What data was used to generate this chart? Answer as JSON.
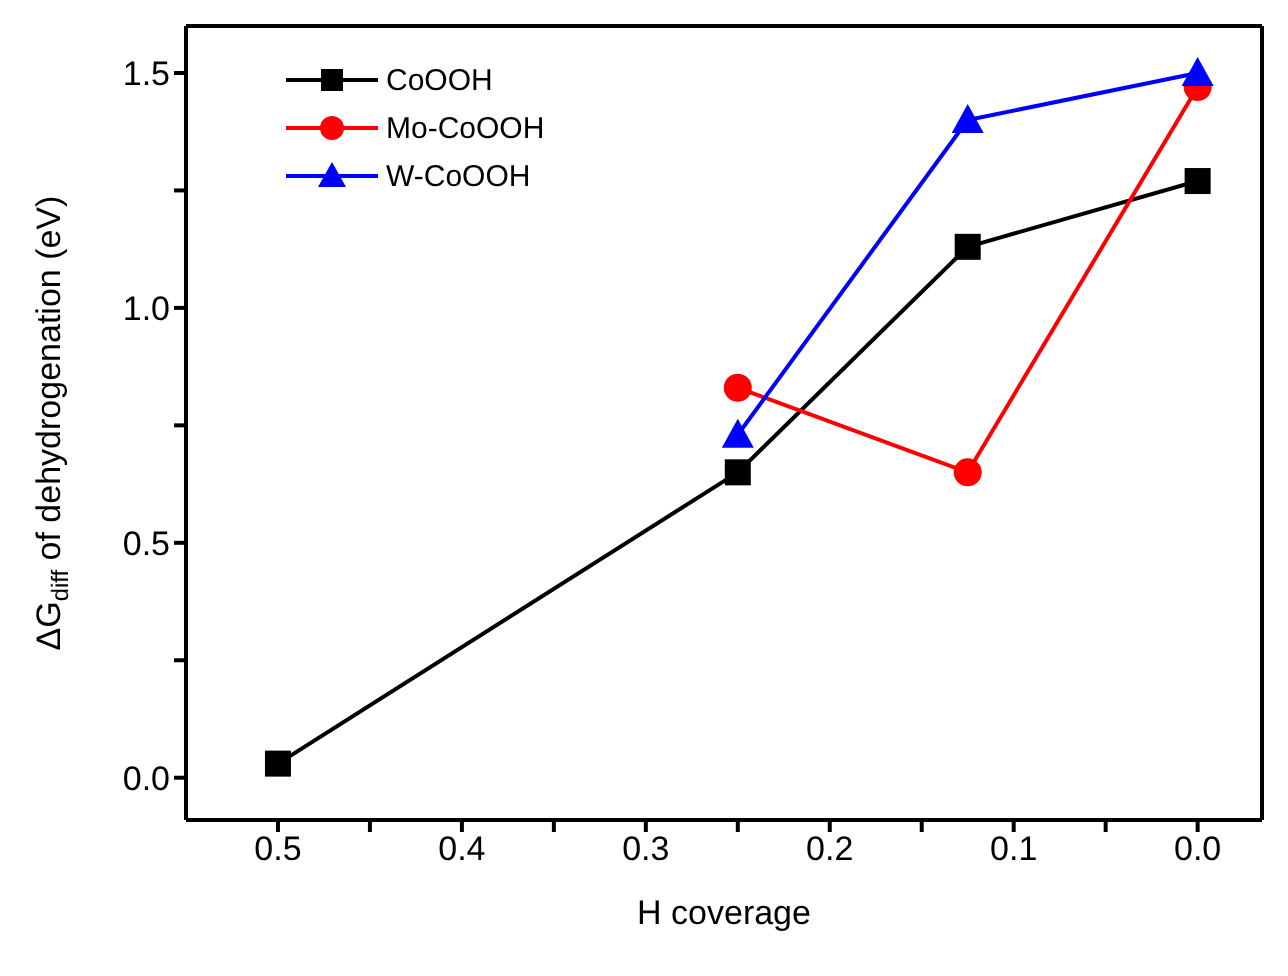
{
  "chart_data": {
    "type": "line",
    "xlabel": "H coverage",
    "ylabel": "ΔG$_{diff}$ of dehydrogenation (eV)",
    "x": [
      0.5,
      0.25,
      0.125,
      0.0
    ],
    "series": [
      {
        "name": "CoOOH",
        "color": "#000000",
        "marker": "square",
        "values": [
          0.03,
          0.65,
          1.13,
          1.27
        ]
      },
      {
        "name": "Mo-CoOOH",
        "color": "#ff0000",
        "marker": "circle",
        "x": [
          0.25,
          0.125,
          0.0
        ],
        "values": [
          0.83,
          0.65,
          1.47
        ]
      },
      {
        "name": "W-CoOOH",
        "color": "#0000ff",
        "marker": "triangle",
        "x": [
          0.25,
          0.125,
          0.0
        ],
        "values": [
          0.73,
          1.4,
          1.5
        ]
      }
    ],
    "xlim": [
      0.55,
      -0.035
    ],
    "ylim": [
      -0.09,
      1.6
    ],
    "xticks": [
      {
        "value": 0.5,
        "label": "0.5"
      },
      {
        "value": 0.45,
        "label": null
      },
      {
        "value": 0.4,
        "label": "0.4"
      },
      {
        "value": 0.35,
        "label": null
      },
      {
        "value": 0.3,
        "label": "0.3"
      },
      {
        "value": 0.25,
        "label": null
      },
      {
        "value": 0.2,
        "label": "0.2"
      },
      {
        "value": 0.15,
        "label": null
      },
      {
        "value": 0.1,
        "label": "0.1"
      },
      {
        "value": 0.05,
        "label": null
      },
      {
        "value": 0.0,
        "label": "0.0"
      }
    ],
    "yticks": [
      {
        "value": 0.0,
        "label": "0.0"
      },
      {
        "value": 0.25,
        "label": null
      },
      {
        "value": 0.5,
        "label": "0.5"
      },
      {
        "value": 0.75,
        "label": null
      },
      {
        "value": 1.0,
        "label": "1.0"
      },
      {
        "value": 1.25,
        "label": null
      },
      {
        "value": 1.5,
        "label": "1.5"
      }
    ],
    "grid": false,
    "legend": "top left",
    "line_style": "solid"
  }
}
